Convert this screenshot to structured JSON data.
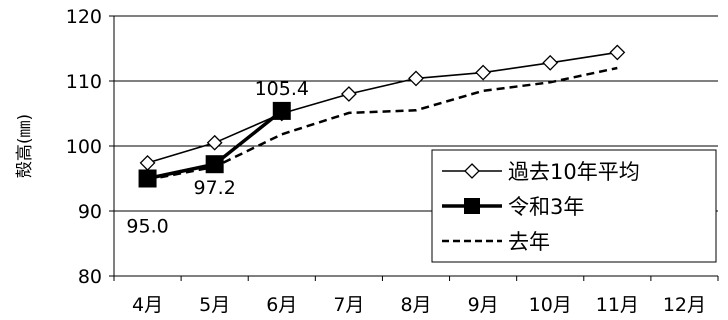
{
  "chart_data": {
    "type": "line",
    "title": "",
    "xlabel": "",
    "ylabel": "殻高(㎜)",
    "categories": [
      "4月",
      "5月",
      "6月",
      "7月",
      "8月",
      "9月",
      "10月",
      "11月",
      "12月"
    ],
    "ylim": [
      80,
      120
    ],
    "yticks": [
      80,
      90,
      100,
      110,
      120
    ],
    "grid": {
      "horizontal": true,
      "vertical": false
    },
    "legend": "bottom-right",
    "series": [
      {
        "name": "過去10年平均",
        "values": [
          97.4,
          100.5,
          105.0,
          108.0,
          110.4,
          111.3,
          112.8,
          114.4,
          null
        ],
        "color": "#000000",
        "style": "solid-thin",
        "marker": "open-diamond"
      },
      {
        "name": "令和3年",
        "values": [
          95.0,
          97.2,
          105.4,
          null,
          null,
          null,
          null,
          null,
          null
        ],
        "color": "#000000",
        "style": "solid-thick",
        "marker": "filled-square",
        "data_labels": [
          "95.0",
          "97.2",
          "105.4"
        ]
      },
      {
        "name": "去年",
        "values": [
          94.8,
          96.8,
          101.8,
          105.1,
          105.5,
          108.5,
          109.8,
          112.0,
          null
        ],
        "color": "#000000",
        "style": "dashed",
        "marker": "none"
      }
    ]
  }
}
